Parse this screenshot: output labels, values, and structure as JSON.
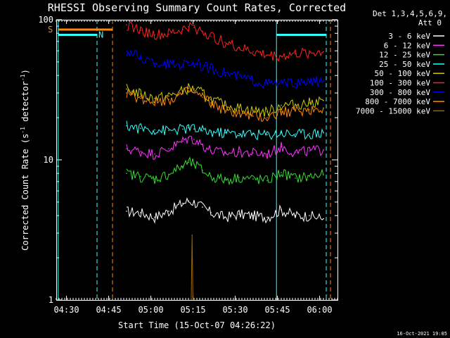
{
  "chart_data": {
    "type": "line",
    "title": "RHESSI Observing Summary Count Rates, Corrected",
    "xlabel": "Start Time (15-Oct-07 04:26:22)",
    "ylabel_main": "Corrected Count Rate (s",
    "ylabel_mid": " detector",
    "ylabel_end": ")",
    "ylabel_sup": "-1",
    "x_units": "minutes after 04:26:22",
    "xlim": [
      0,
      100
    ],
    "ylim": [
      1,
      100
    ],
    "yscale": "log",
    "x_ticks": [
      {
        "label": "04:30",
        "value": 3.63
      },
      {
        "label": "04:45",
        "value": 18.63
      },
      {
        "label": "05:00",
        "value": 33.63
      },
      {
        "label": "05:15",
        "value": 48.63
      },
      {
        "label": "05:30",
        "value": 63.63
      },
      {
        "label": "05:45",
        "value": 78.63
      },
      {
        "label": "06:00",
        "value": 93.63
      }
    ],
    "y_ticks": [
      {
        "label": "1",
        "value": 1
      },
      {
        "label": "10",
        "value": 10
      },
      {
        "label": "100",
        "value": 100
      }
    ],
    "legend_title_1": "Det 1,3,4,5,6,9,",
    "legend_title_2": "Att 0",
    "legend_position": "right",
    "series": [
      {
        "name": "3 - 6 keV",
        "color": "#ffffff",
        "x": [
          25,
          30,
          35,
          40,
          45,
          47,
          49,
          52,
          55,
          60,
          65,
          70,
          75,
          80,
          85,
          90,
          95
        ],
        "y": [
          4.3,
          4.2,
          3.9,
          4.3,
          4.9,
          5.1,
          5.0,
          4.6,
          4.2,
          3.9,
          4.1,
          4.0,
          3.9,
          4.4,
          4.0,
          4.0,
          3.8
        ]
      },
      {
        "name": "6 - 12 keV",
        "color": "#ff33ff",
        "x": [
          25,
          30,
          35,
          40,
          45,
          47,
          49,
          52,
          55,
          60,
          65,
          70,
          75,
          80,
          85,
          90,
          95
        ],
        "y": [
          12.0,
          11.5,
          11.0,
          12.0,
          13.6,
          14.4,
          14.0,
          12.8,
          11.6,
          11.2,
          11.4,
          11.2,
          11.0,
          12.4,
          11.3,
          11.6,
          11.8
        ]
      },
      {
        "name": "12 - 25 keV",
        "color": "#33dd33",
        "x": [
          25,
          30,
          35,
          40,
          45,
          47,
          49,
          52,
          55,
          60,
          65,
          70,
          75,
          80,
          85,
          90,
          95
        ],
        "y": [
          8.0,
          7.6,
          7.3,
          7.9,
          9.0,
          9.6,
          9.3,
          8.4,
          7.6,
          7.2,
          7.5,
          7.3,
          7.1,
          8.1,
          7.4,
          7.6,
          7.8
        ]
      },
      {
        "name": "25 - 50 keV",
        "color": "#33ffff",
        "x": [
          25,
          30,
          35,
          40,
          45,
          47,
          49,
          52,
          55,
          60,
          65,
          70,
          75,
          80,
          85,
          90,
          95
        ],
        "y": [
          17.5,
          16.8,
          16.4,
          16.2,
          16.6,
          16.9,
          16.6,
          16.1,
          15.8,
          15.6,
          15.4,
          15.3,
          15.1,
          15.6,
          15.3,
          15.4,
          15.6
        ]
      },
      {
        "name": "50 - 100 keV",
        "color": "#cccc00",
        "x": [
          25,
          30,
          35,
          40,
          45,
          47,
          49,
          52,
          55,
          60,
          65,
          70,
          75,
          80,
          85,
          90,
          95
        ],
        "y": [
          32.0,
          29.5,
          27.5,
          28.5,
          31.0,
          32.5,
          32.0,
          30.0,
          27.0,
          24.5,
          23.5,
          22.5,
          22.0,
          24.5,
          24.8,
          25.5,
          26.5
        ]
      },
      {
        "name": "100 - 300 keV",
        "color": "#ff2222",
        "x": [
          25,
          30,
          35,
          40,
          45,
          47,
          49,
          52,
          55,
          60,
          65,
          70,
          75,
          80,
          85,
          90,
          95
        ],
        "y": [
          92,
          84,
          78,
          79,
          85,
          89,
          88,
          83,
          76,
          69,
          63,
          59,
          56,
          55,
          57,
          58,
          59
        ]
      },
      {
        "name": "300 - 800 keV",
        "color": "#0000ff",
        "x": [
          25,
          30,
          35,
          40,
          45,
          47,
          49,
          52,
          55,
          60,
          65,
          70,
          75,
          80,
          85,
          90,
          95
        ],
        "y": [
          60,
          53,
          49,
          48,
          48,
          50,
          49,
          47,
          45,
          42,
          39,
          37,
          35,
          35,
          35,
          36,
          37
        ]
      },
      {
        "name": "800 - 7000 keV",
        "color": "#ff8800",
        "x": [
          25,
          30,
          35,
          40,
          45,
          47,
          49,
          52,
          55,
          60,
          65,
          70,
          75,
          80,
          85,
          90,
          95
        ],
        "y": [
          30.0,
          27.5,
          26.0,
          27.0,
          29.5,
          31.0,
          30.0,
          28.0,
          25.5,
          22.5,
          21.5,
          20.5,
          20.0,
          22.0,
          22.3,
          22.8,
          23.5
        ]
      },
      {
        "name": "7000 - 15000 keV",
        "color": "#996600",
        "x": [
          48,
          48.3,
          48.6,
          49
        ],
        "y": [
          1.0,
          2.9,
          1.0,
          1.0
        ]
      }
    ],
    "annotations": {
      "s_label": "S",
      "n_label": "N",
      "solid_cyan_lines_x": [
        0.7,
        78.3
      ],
      "dashed_cyan_lines_x": [
        14.5,
        96
      ],
      "dashed_orange_lines_x": [
        20,
        97.5
      ],
      "orange_segment_x": [
        0.7,
        20
      ],
      "orange_segment_y": 85,
      "cyan_segment_x": [
        0.7,
        14.5
      ],
      "cyan_segment_y": 78,
      "cyan_segment_right_x": [
        78.3,
        96
      ]
    },
    "timestamp": "16-Oct-2021 19:05"
  }
}
